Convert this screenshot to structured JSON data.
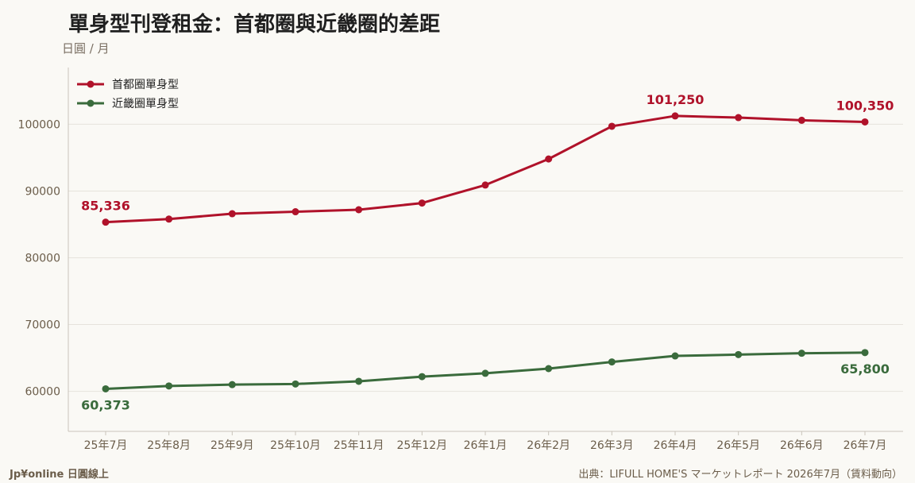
{
  "header": {
    "title": "單身型刊登租金：首都圈與近畿圈的差距",
    "unit": "日圓 / 月"
  },
  "footer": {
    "brand": "Jp¥online 日圓線上",
    "source": "出典：LIFULL HOME'S マーケットレポート 2026年7月（賃料動向）"
  },
  "colors": {
    "series_1": "#b0122a",
    "series_2": "#3a6b3c",
    "grid": "#e6e3dc",
    "axis": "#c9c4ba"
  },
  "chart_data": {
    "type": "line",
    "categories": [
      "25年7月",
      "25年8月",
      "25年9月",
      "25年10月",
      "25年11月",
      "25年12月",
      "26年1月",
      "26年2月",
      "26年3月",
      "26年4月",
      "26年5月",
      "26年6月",
      "26年7月"
    ],
    "series": [
      {
        "name": "首都圈單身型",
        "values": [
          85336,
          85800,
          86600,
          86900,
          87200,
          88200,
          90900,
          94800,
          99700,
          101250,
          101000,
          100600,
          100350
        ]
      },
      {
        "name": "近畿圈單身型",
        "values": [
          60373,
          60800,
          61000,
          61100,
          61500,
          62200,
          62700,
          63400,
          64400,
          65300,
          65500,
          65700,
          65800
        ]
      }
    ],
    "annotations": [
      {
        "series": 0,
        "index": 0,
        "text": "85,336"
      },
      {
        "series": 0,
        "index": 9,
        "text": "101,250"
      },
      {
        "series": 0,
        "index": 12,
        "text": "100,350"
      },
      {
        "series": 1,
        "index": 0,
        "text": "60,373"
      },
      {
        "series": 1,
        "index": 12,
        "text": "65,800"
      }
    ],
    "yticks": [
      60000,
      70000,
      80000,
      90000,
      100000
    ],
    "ylim": [
      54000,
      108500
    ],
    "grid": true,
    "legend": "top-left"
  }
}
